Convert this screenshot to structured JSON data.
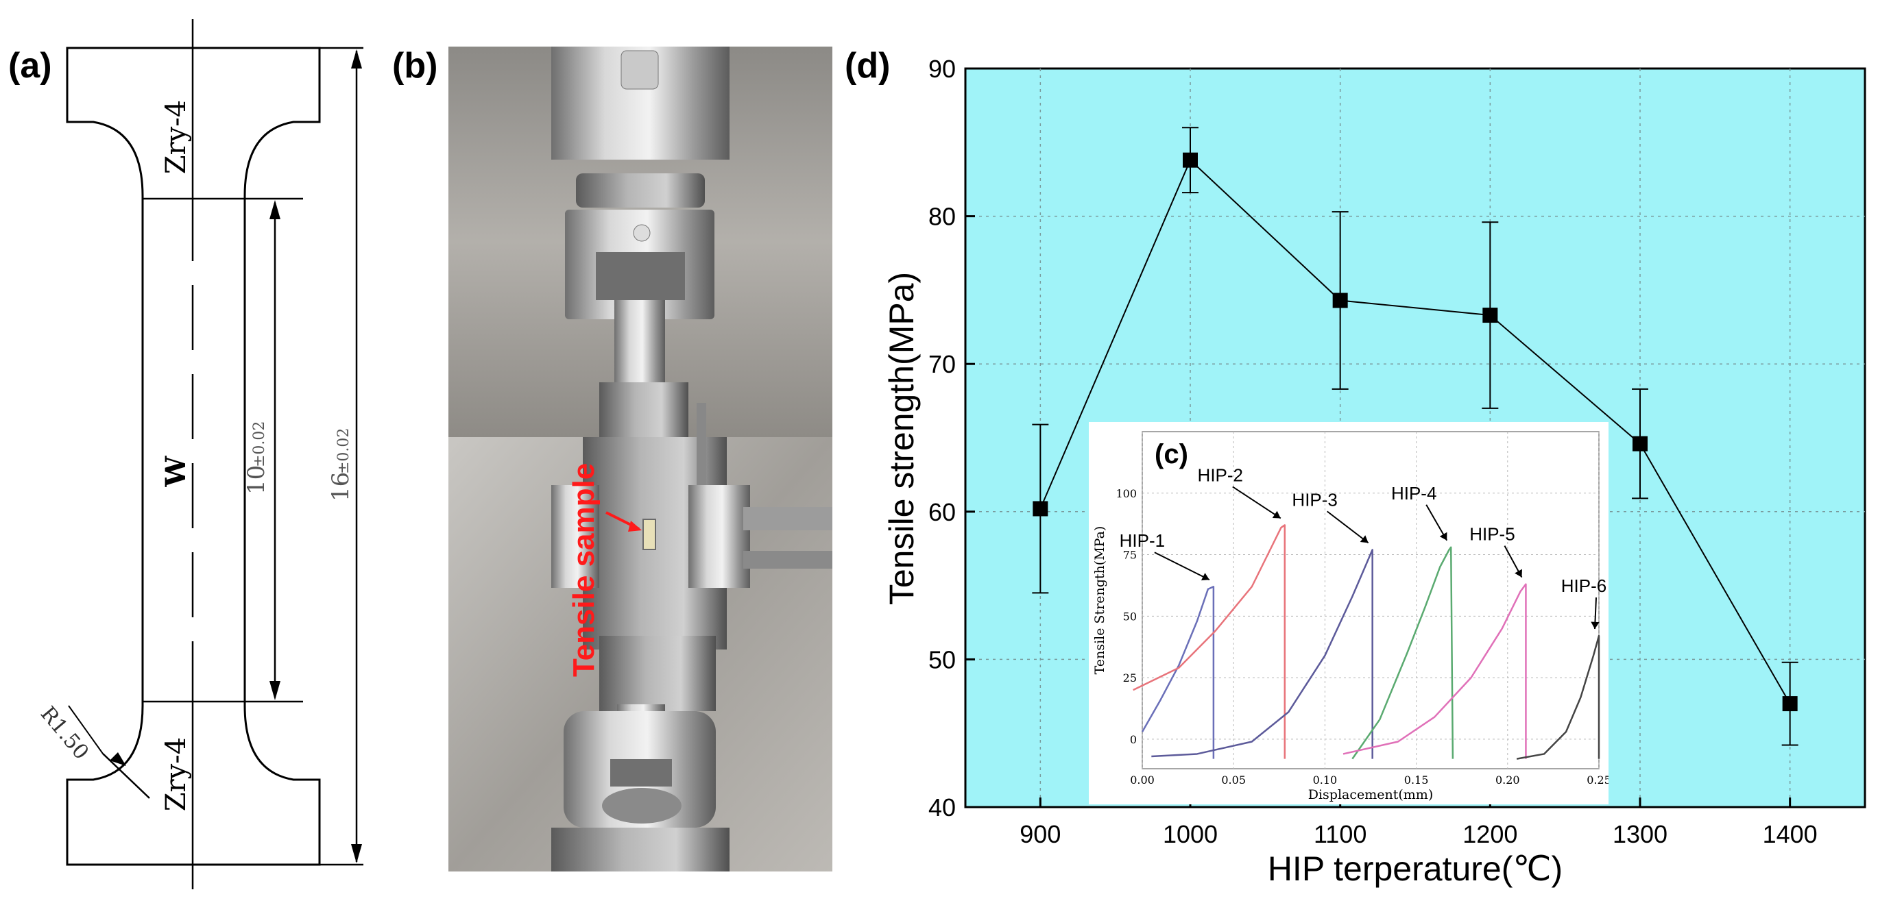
{
  "panels": {
    "a": {
      "label": "(a)",
      "top_material": "Zry-4",
      "middle_material": "W",
      "bottom_material": "Zry-4",
      "gauge_length": "10",
      "gauge_tolerance": "±0.02",
      "total_length": "16",
      "total_tolerance": "±0.02",
      "fillet_radius": "R1.50"
    },
    "b": {
      "label": "(b)",
      "annotation": "Tensile sample",
      "annotation_color": "#ff1a1a"
    },
    "d": {
      "label": "(d)"
    },
    "c": {
      "label": "(c)"
    }
  },
  "colors": {
    "main_plot_bg": "#a0f3f8",
    "inset_bg": "#ffffff",
    "marker": "#000000",
    "hip1": "#6a6fb8",
    "hip2": "#e8737a",
    "hip3": "#5c5a9a",
    "hip4": "#5aaa70",
    "hip5": "#e070b8",
    "hip6": "#444444"
  },
  "chart_data": [
    {
      "id": "d",
      "type": "line",
      "xlabel": "HIP terperature(℃)",
      "ylabel": "Tensile strength(MPa)",
      "xlim": [
        850,
        1450
      ],
      "ylim": [
        40,
        90
      ],
      "xticks": [
        900,
        1000,
        1100,
        1200,
        1300,
        1400
      ],
      "yticks": [
        40,
        50,
        60,
        70,
        80,
        90
      ],
      "grid": true,
      "marker": "square",
      "x": [
        900,
        1000,
        1100,
        1200,
        1300,
        1400
      ],
      "y": [
        60.2,
        83.8,
        74.3,
        73.3,
        64.6,
        47.0
      ],
      "error": [
        5.7,
        2.2,
        6.0,
        6.3,
        3.7,
        2.8
      ]
    },
    {
      "id": "c",
      "type": "line",
      "xlabel": "Displacement(mm)",
      "ylabel": "Tensile Strength(MPa)",
      "xlim": [
        0,
        0.25
      ],
      "ylim": [
        -12,
        125
      ],
      "xticks": [
        "0.00",
        "0.05",
        "0.10",
        "0.15",
        "0.20",
        "0.25"
      ],
      "yticks": [
        "0",
        "25",
        "50",
        "75",
        "100"
      ],
      "grid": true,
      "series": [
        {
          "name": "HIP-1",
          "x": [
            0.0,
            0.01,
            0.02,
            0.03,
            0.036,
            0.039,
            0.039
          ],
          "y": [
            3,
            16,
            30,
            48,
            61,
            62,
            -8
          ]
        },
        {
          "name": "HIP-2",
          "x": [
            -0.005,
            0.02,
            0.04,
            0.06,
            0.07,
            0.076,
            0.078,
            0.078
          ],
          "y": [
            20,
            29,
            44,
            62,
            77,
            86,
            87,
            -8
          ]
        },
        {
          "name": "HIP-3",
          "x": [
            0.005,
            0.03,
            0.06,
            0.08,
            0.1,
            0.115,
            0.126,
            0.126
          ],
          "y": [
            -7,
            -6,
            -1,
            11,
            34,
            58,
            77,
            -8
          ]
        },
        {
          "name": "HIP-4",
          "x": [
            0.115,
            0.13,
            0.145,
            0.155,
            0.163,
            0.168,
            0.169,
            0.17
          ],
          "y": [
            -8,
            8,
            35,
            54,
            70,
            77,
            78,
            -8
          ]
        },
        {
          "name": "HIP-5",
          "x": [
            0.11,
            0.14,
            0.16,
            0.18,
            0.197,
            0.207,
            0.21,
            0.21
          ],
          "y": [
            -6,
            -1,
            9,
            25,
            45,
            60,
            63,
            -8
          ]
        },
        {
          "name": "HIP-6",
          "x": [
            0.205,
            0.22,
            0.232,
            0.24,
            0.247,
            0.25,
            0.25
          ],
          "y": [
            -8,
            -6,
            3,
            17,
            34,
            42,
            -8
          ]
        }
      ],
      "annotations": [
        "HIP-1",
        "HIP-2",
        "HIP-3",
        "HIP-4",
        "HIP-5",
        "HIP-6"
      ]
    }
  ]
}
